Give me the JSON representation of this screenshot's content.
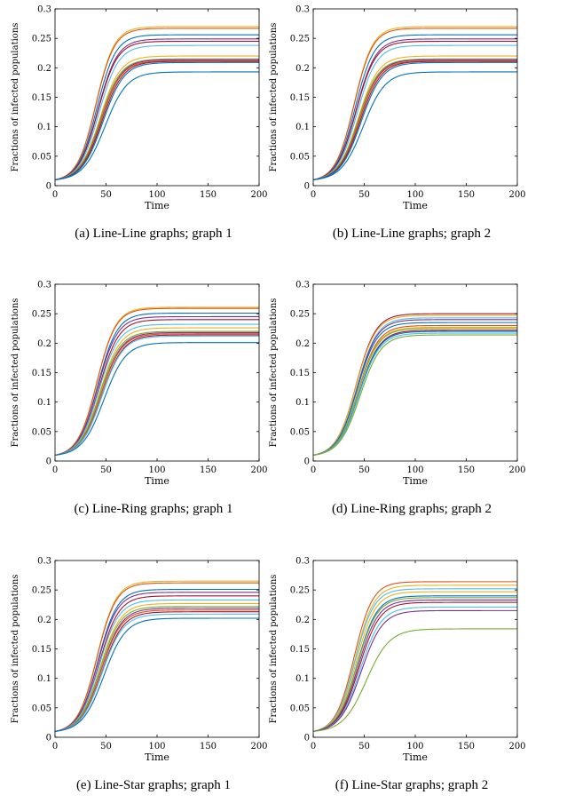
{
  "panels": [
    {
      "caption": "(a) Line-Line graphs; graph 1",
      "chart_data": {
        "type": "line",
        "xlabel": "Time",
        "ylabel": "Fractions of infected populations",
        "xlim": [
          0,
          200
        ],
        "ylim": [
          0,
          0.3
        ],
        "xticks": [
          "0",
          "50",
          "100",
          "150",
          "200"
        ],
        "yticks": [
          "0",
          "0.05",
          "0.1",
          "0.15",
          "0.2",
          "0.25",
          "0.3"
        ],
        "grid": false,
        "legend": "none",
        "curve_model": "logistic",
        "start_value": 0.01,
        "midpoints": [
          40,
          40,
          41,
          42,
          42,
          43,
          44,
          44,
          45,
          45,
          46,
          47,
          49
        ],
        "rates": [
          0.11,
          0.11,
          0.108,
          0.105,
          0.105,
          0.104,
          0.102,
          0.1,
          0.1,
          0.1,
          0.098,
          0.097,
          0.093
        ],
        "plateaus": [
          0.27,
          0.267,
          0.256,
          0.249,
          0.245,
          0.238,
          0.22,
          0.215,
          0.214,
          0.212,
          0.211,
          0.209,
          0.193
        ],
        "colors": [
          "#EDB120",
          "#D95319",
          "#0072BD",
          "#7E2F8E",
          "#A2142F",
          "#4DBEEE",
          "#EDB120",
          "#77AC30",
          "#7E2F8E",
          "#D95319",
          "#A2142F",
          "#0072BD",
          "#0072BD"
        ]
      }
    },
    {
      "caption": "(b) Line-Line graphs; graph 2",
      "chart_data": {
        "type": "line",
        "xlabel": "Time",
        "ylabel": "Fractions of infected populations",
        "xlim": [
          0,
          200
        ],
        "ylim": [
          0,
          0.3
        ],
        "xticks": [
          "0",
          "50",
          "100",
          "150",
          "200"
        ],
        "yticks": [
          "0",
          "0.05",
          "0.1",
          "0.15",
          "0.2",
          "0.25",
          "0.3"
        ],
        "grid": false,
        "legend": "none",
        "curve_model": "logistic",
        "start_value": 0.01,
        "midpoints": [
          40,
          40,
          41,
          42,
          42,
          43,
          44,
          44,
          45,
          45,
          46,
          47,
          49
        ],
        "rates": [
          0.11,
          0.11,
          0.108,
          0.105,
          0.105,
          0.104,
          0.102,
          0.1,
          0.1,
          0.1,
          0.098,
          0.097,
          0.093
        ],
        "plateaus": [
          0.27,
          0.267,
          0.256,
          0.249,
          0.245,
          0.238,
          0.22,
          0.215,
          0.214,
          0.212,
          0.211,
          0.209,
          0.193
        ],
        "colors": [
          "#EDB120",
          "#D95319",
          "#0072BD",
          "#7E2F8E",
          "#A2142F",
          "#4DBEEE",
          "#EDB120",
          "#77AC30",
          "#7E2F8E",
          "#D95319",
          "#A2142F",
          "#0072BD",
          "#0072BD"
        ]
      }
    },
    {
      "caption": "(c) Line-Ring graphs; graph 1",
      "chart_data": {
        "type": "line",
        "xlabel": "Time",
        "ylabel": "Fractions of infected populations",
        "xlim": [
          0,
          200
        ],
        "ylim": [
          0,
          0.3
        ],
        "xticks": [
          "0",
          "50",
          "100",
          "150",
          "200"
        ],
        "yticks": [
          "0",
          "0.05",
          "0.1",
          "0.15",
          "0.2",
          "0.25",
          "0.3"
        ],
        "grid": false,
        "legend": "none",
        "curve_model": "logistic",
        "start_value": 0.01,
        "midpoints": [
          41,
          41,
          42,
          42,
          43,
          43,
          44,
          44,
          45,
          45,
          46,
          46,
          48
        ],
        "rates": [
          0.107,
          0.107,
          0.105,
          0.104,
          0.103,
          0.102,
          0.101,
          0.1,
          0.1,
          0.099,
          0.098,
          0.097,
          0.094
        ],
        "plateaus": [
          0.261,
          0.259,
          0.251,
          0.245,
          0.24,
          0.232,
          0.226,
          0.22,
          0.218,
          0.216,
          0.214,
          0.212,
          0.201
        ],
        "colors": [
          "#EDB120",
          "#D95319",
          "#0072BD",
          "#7E2F8E",
          "#A2142F",
          "#4DBEEE",
          "#EDB120",
          "#77AC30",
          "#7E2F8E",
          "#D95319",
          "#A2142F",
          "#4DBEEE",
          "#0072BD"
        ]
      }
    },
    {
      "caption": "(d) Line-Ring graphs; graph 2",
      "chart_data": {
        "type": "line",
        "xlabel": "Time",
        "ylabel": "Fractions of infected populations",
        "xlim": [
          0,
          200
        ],
        "ylim": [
          0,
          0.3
        ],
        "xticks": [
          "0",
          "50",
          "100",
          "150",
          "200"
        ],
        "yticks": [
          "0",
          "0.05",
          "0.1",
          "0.15",
          "0.2",
          "0.25",
          "0.3"
        ],
        "grid": false,
        "legend": "none",
        "curve_model": "logistic",
        "start_value": 0.01,
        "midpoints": [
          42,
          42,
          43,
          43,
          43,
          44,
          44,
          44,
          45,
          45,
          45,
          46
        ],
        "rates": [
          0.104,
          0.104,
          0.103,
          0.103,
          0.102,
          0.102,
          0.101,
          0.101,
          0.1,
          0.1,
          0.099,
          0.098
        ],
        "plateaus": [
          0.25,
          0.247,
          0.243,
          0.24,
          0.235,
          0.23,
          0.227,
          0.225,
          0.222,
          0.22,
          0.217,
          0.214
        ],
        "colors": [
          "#A2142F",
          "#EDB120",
          "#4DBEEE",
          "#7E2F8E",
          "#0072BD",
          "#D95319",
          "#EDB120",
          "#77AC30",
          "#A2142F",
          "#0072BD",
          "#4DBEEE",
          "#77AC30"
        ]
      }
    },
    {
      "caption": "(e) Line-Star graphs; graph 1",
      "chart_data": {
        "type": "line",
        "xlabel": "Time",
        "ylabel": "Fractions of infected populations",
        "xlim": [
          0,
          200
        ],
        "ylim": [
          0,
          0.3
        ],
        "xticks": [
          "0",
          "50",
          "100",
          "150",
          "200"
        ],
        "yticks": [
          "0",
          "0.05",
          "0.1",
          "0.15",
          "0.2",
          "0.25",
          "0.3"
        ],
        "grid": false,
        "legend": "none",
        "curve_model": "logistic",
        "start_value": 0.01,
        "midpoints": [
          41,
          41,
          42,
          42,
          43,
          43,
          44,
          44,
          45,
          45,
          46,
          46,
          48
        ],
        "rates": [
          0.107,
          0.107,
          0.105,
          0.104,
          0.103,
          0.102,
          0.101,
          0.1,
          0.1,
          0.099,
          0.098,
          0.097,
          0.094
        ],
        "plateaus": [
          0.265,
          0.262,
          0.251,
          0.246,
          0.24,
          0.233,
          0.227,
          0.222,
          0.219,
          0.216,
          0.213,
          0.209,
          0.202
        ],
        "colors": [
          "#EDB120",
          "#D95319",
          "#0072BD",
          "#7E2F8E",
          "#A2142F",
          "#4DBEEE",
          "#EDB120",
          "#77AC30",
          "#7E2F8E",
          "#D95319",
          "#A2142F",
          "#4DBEEE",
          "#0072BD"
        ]
      }
    },
    {
      "caption": "(f) Line-Star graphs; graph 2",
      "chart_data": {
        "type": "line",
        "xlabel": "Time",
        "ylabel": "Fractions of infected populations",
        "xlim": [
          0,
          200
        ],
        "ylim": [
          0,
          0.3
        ],
        "xticks": [
          "0",
          "50",
          "100",
          "150",
          "200"
        ],
        "yticks": [
          "0",
          "0.05",
          "0.1",
          "0.15",
          "0.2",
          "0.25",
          "0.3"
        ],
        "grid": false,
        "legend": "none",
        "curve_model": "logistic",
        "start_value": 0.01,
        "midpoints": [
          40,
          41,
          41,
          42,
          43,
          43,
          44,
          45,
          46,
          47,
          52
        ],
        "rates": [
          0.11,
          0.108,
          0.107,
          0.105,
          0.104,
          0.103,
          0.102,
          0.1,
          0.098,
          0.096,
          0.088
        ],
        "plateaus": [
          0.264,
          0.258,
          0.252,
          0.247,
          0.24,
          0.237,
          0.233,
          0.229,
          0.221,
          0.215,
          0.184
        ],
        "colors": [
          "#D95319",
          "#EDB120",
          "#4DBEEE",
          "#EDB120",
          "#0072BD",
          "#77AC30",
          "#7E2F8E",
          "#A2142F",
          "#4DBEEE",
          "#7E2F8E",
          "#77AC30"
        ]
      }
    }
  ]
}
